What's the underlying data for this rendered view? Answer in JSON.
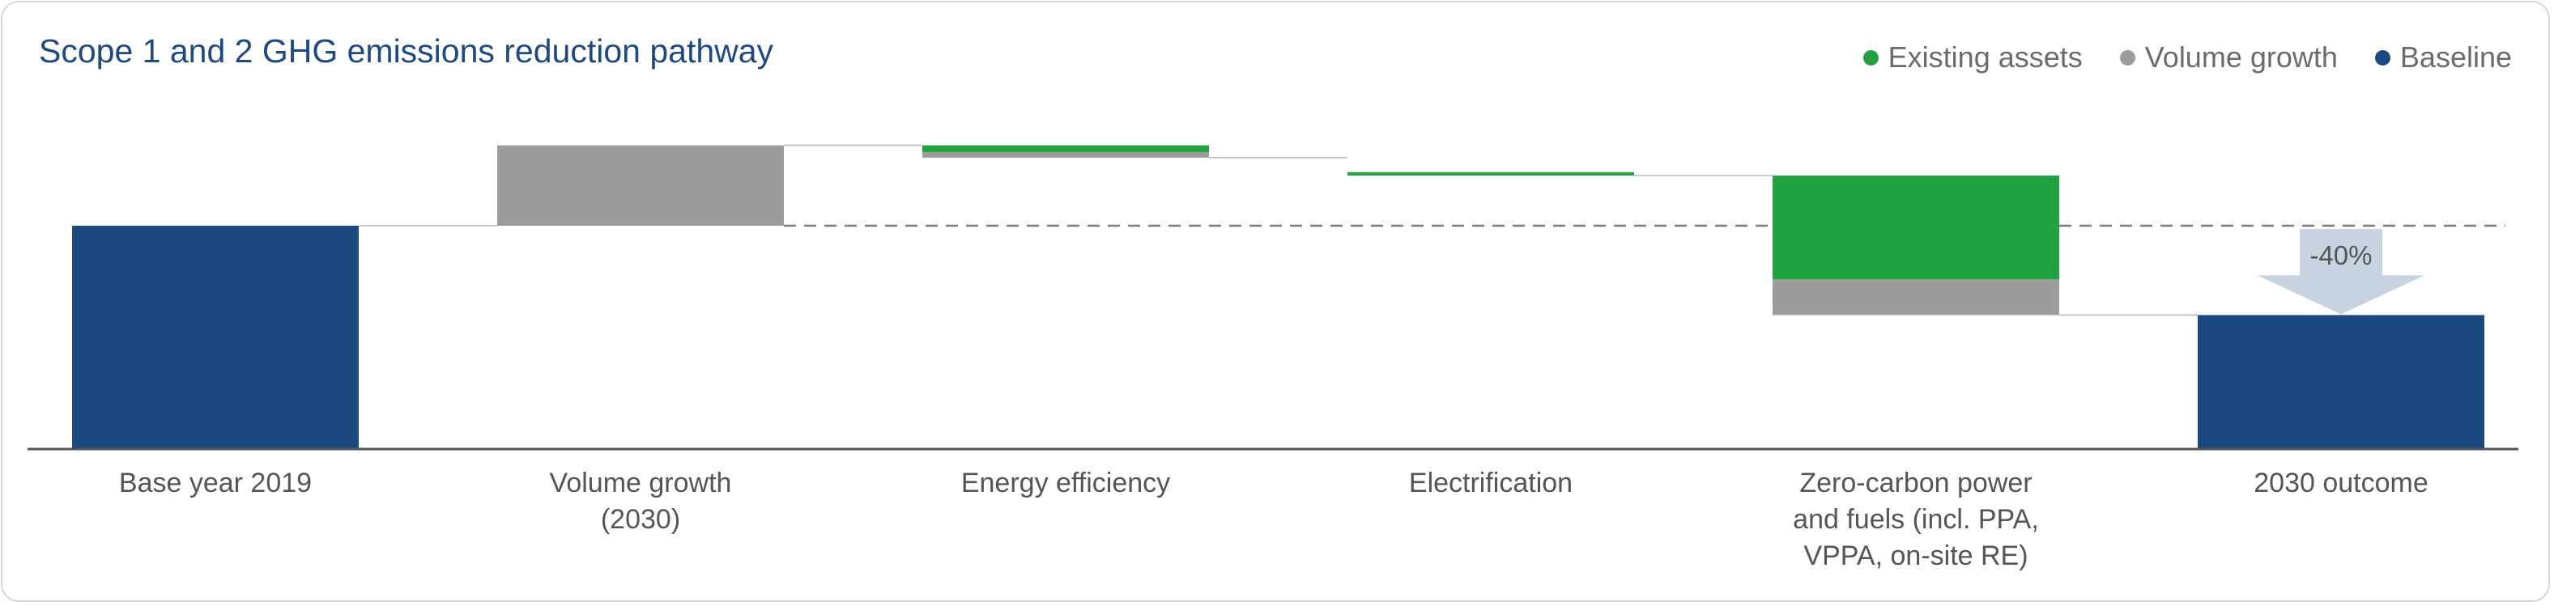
{
  "chart_data": {
    "type": "bar",
    "subtype": "waterfall",
    "title": "Scope 1 and 2 GHG emissions reduction pathway",
    "xlabel": "",
    "ylabel": "",
    "ylim": [
      0,
      100
    ],
    "grid": false,
    "legend_position": "top-right",
    "legend": [
      {
        "name": "Existing assets",
        "color": "#21a140"
      },
      {
        "name": "Volume growth",
        "color": "#9b9c9b"
      },
      {
        "name": "Baseline",
        "color": "#1c4a80"
      }
    ],
    "categories": [
      {
        "label_lines": [
          "Base year 2019"
        ]
      },
      {
        "label_lines": [
          "Volume growth",
          "(2030)"
        ]
      },
      {
        "label_lines": [
          "Energy efficiency"
        ]
      },
      {
        "label_lines": [
          "Electrification"
        ]
      },
      {
        "label_lines": [
          "Zero-carbon power",
          "and fuels (incl. PPA,",
          "VPPA, on-site RE)"
        ]
      },
      {
        "label_lines": [
          "2030 outcome"
        ]
      }
    ],
    "segments": [
      {
        "category": 0,
        "series": "Baseline",
        "from": 0,
        "to": 100
      },
      {
        "category": 1,
        "series": "Volume growth",
        "from": 100,
        "to": 136
      },
      {
        "category": 2,
        "series": "Volume growth",
        "from": 130.5,
        "to": 133
      },
      {
        "category": 2,
        "series": "Existing assets",
        "from": 133,
        "to": 136
      },
      {
        "category": 3,
        "series": "Existing assets",
        "from": 122.5,
        "to": 124
      },
      {
        "category": 4,
        "series": "Volume growth",
        "from": 60,
        "to": 76
      },
      {
        "category": 4,
        "series": "Existing assets",
        "from": 76,
        "to": 122.5
      },
      {
        "category": 5,
        "series": "Baseline",
        "from": 0,
        "to": 60
      }
    ],
    "baseline_reference": 100,
    "annotation": {
      "text": "-40%",
      "from": 100,
      "to": 60,
      "category": 5
    }
  }
}
